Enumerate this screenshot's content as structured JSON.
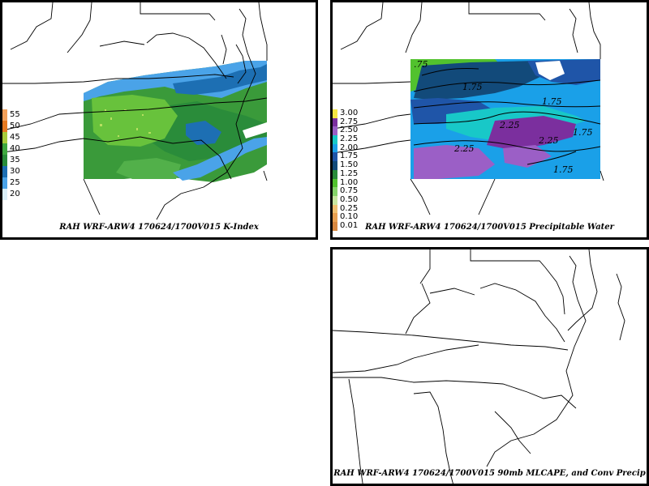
{
  "panels": {
    "kindex": {
      "caption": "RAH WRF-ARW4 170624/1700V015  K-Index",
      "legend": [
        {
          "label": "55",
          "color": "#f2a05a"
        },
        {
          "label": "50",
          "color": "#e67a22"
        },
        {
          "label": "45",
          "color": "#a8cc3c"
        },
        {
          "label": "40",
          "color": "#3fa83f"
        },
        {
          "label": "35",
          "color": "#2a8c3a"
        },
        {
          "label": "30",
          "color": "#1d6fb3"
        },
        {
          "label": "25",
          "color": "#4aa3e8"
        },
        {
          "label": "20",
          "color": "#d8eef8"
        }
      ]
    },
    "pwat": {
      "caption": "RAH WRF-ARW4 170624/1700V015  Precipitable Water",
      "legend": [
        {
          "label": "3.00",
          "color": "#f5e642"
        },
        {
          "label": "2.75",
          "color": "#7b2f9e"
        },
        {
          "label": "2.50",
          "color": "#9b5fc6"
        },
        {
          "label": "2.25",
          "color": "#18c8c8"
        },
        {
          "label": "2.00",
          "color": "#1aa0e8"
        },
        {
          "label": "1.75",
          "color": "#1f55a8"
        },
        {
          "label": "1.50",
          "color": "#124a7a"
        },
        {
          "label": "1.25",
          "color": "#2a8c3a"
        },
        {
          "label": "1.00",
          "color": "#52c22e"
        },
        {
          "label": "0.75",
          "color": "#86d46a"
        },
        {
          "label": "0.50",
          "color": "#c8e6a0"
        },
        {
          "label": "0.25",
          "color": "#f0c070"
        },
        {
          "label": "0.10",
          "color": "#e8a050"
        },
        {
          "label": "0.01",
          "color": "#d88840"
        }
      ],
      "contour_labels": [
        "1.75",
        "2.25",
        "2.25",
        "1.75",
        "2.25",
        "1.75",
        ".75",
        "1.75"
      ]
    },
    "mlcape": {
      "caption": "RAH WRF-ARW4 170624/1700V015  90mb MLCAPE, and Conv Precip"
    }
  }
}
